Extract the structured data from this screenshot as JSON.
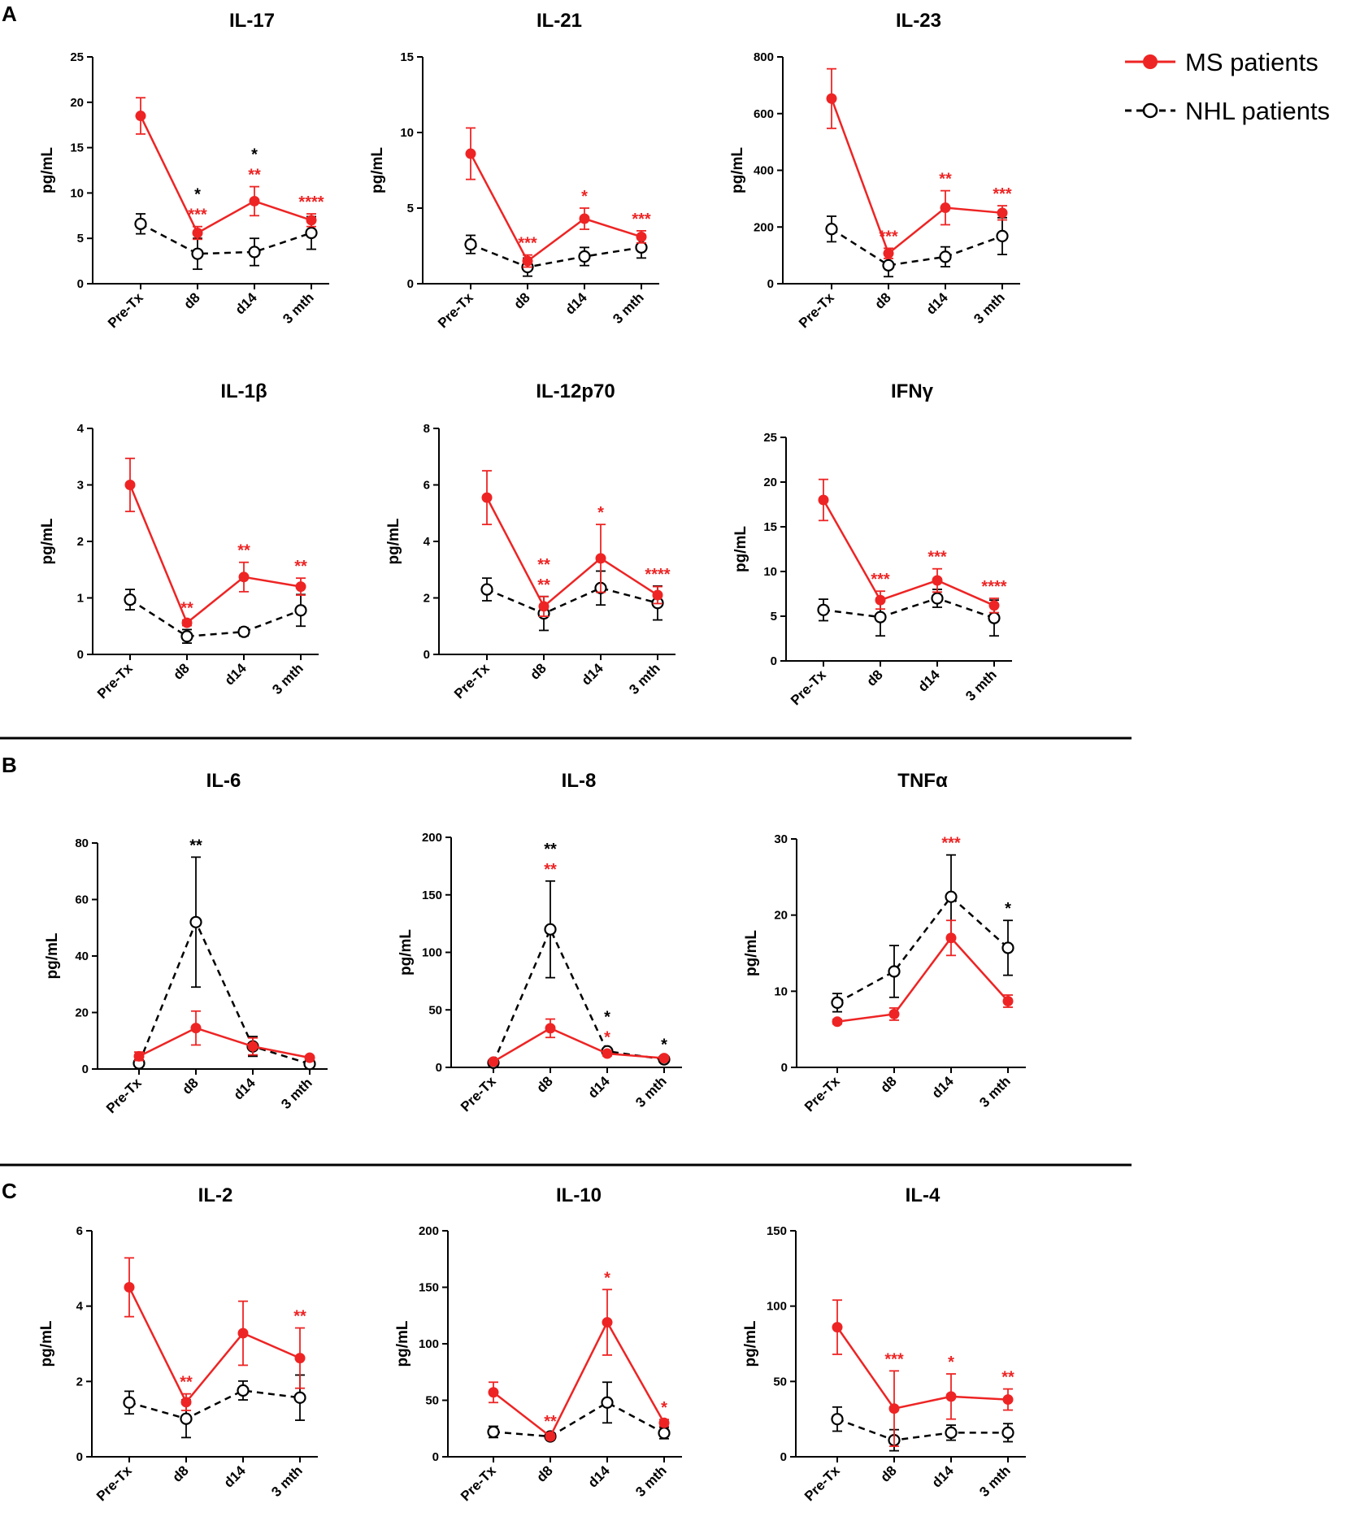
{
  "sections": [
    "A",
    "B",
    "C"
  ],
  "legend": {
    "items": [
      {
        "label": "MS patients",
        "color": "#ee2424",
        "marker": "filled-circle",
        "line": "solid"
      },
      {
        "label": "NHL patients",
        "color": "#000000",
        "marker": "open-circle",
        "line": "dashed"
      }
    ]
  },
  "chart_data": [
    {
      "type": "line",
      "title": "IL-17",
      "ylabel": "pg/mL",
      "categories": [
        "Pre-Tx",
        "d8",
        "d14",
        "3 mth"
      ],
      "ylim": [
        0,
        25
      ],
      "yticks": [
        0,
        5,
        10,
        15,
        20,
        25
      ],
      "series": [
        {
          "name": "MS patients",
          "values": [
            18.5,
            5.6,
            9.1,
            7.0
          ],
          "errors": [
            2.0,
            0.7,
            1.6,
            0.7
          ]
        },
        {
          "name": "NHL patients",
          "values": [
            6.6,
            3.3,
            3.5,
            5.6
          ],
          "errors": [
            1.1,
            1.7,
            1.5,
            1.8
          ]
        }
      ],
      "annotations": [
        {
          "category": "d8",
          "text": "*",
          "color": "#000000"
        },
        {
          "category": "d8",
          "text": "***",
          "color": "#ee2424"
        },
        {
          "category": "d14",
          "text": "*",
          "color": "#000000"
        },
        {
          "category": "d14",
          "text": "**",
          "color": "#ee2424"
        },
        {
          "category": "3 mth",
          "text": "****",
          "color": "#ee2424"
        }
      ]
    },
    {
      "type": "line",
      "title": "IL-21",
      "ylabel": "pg/mL",
      "categories": [
        "Pre-Tx",
        "d8",
        "d14",
        "3 mth"
      ],
      "ylim": [
        0,
        15
      ],
      "yticks": [
        0,
        5,
        10,
        15
      ],
      "series": [
        {
          "name": "MS patients",
          "values": [
            8.6,
            1.5,
            4.3,
            3.1
          ],
          "errors": [
            1.7,
            0.4,
            0.7,
            0.4
          ]
        },
        {
          "name": "NHL patients",
          "values": [
            2.6,
            1.1,
            1.8,
            2.4
          ],
          "errors": [
            0.6,
            0.6,
            0.6,
            0.7
          ]
        }
      ],
      "annotations": [
        {
          "category": "d8",
          "text": "***",
          "color": "#ee2424"
        },
        {
          "category": "d14",
          "text": "*",
          "color": "#ee2424"
        },
        {
          "category": "3 mth",
          "text": "***",
          "color": "#ee2424"
        }
      ]
    },
    {
      "type": "line",
      "title": "IL-23",
      "ylabel": "pg/mL",
      "categories": [
        "Pre-Tx",
        "d8",
        "d14",
        "3 mth"
      ],
      "ylim": [
        0,
        800
      ],
      "yticks": [
        0,
        200,
        400,
        600,
        800
      ],
      "series": [
        {
          "name": "MS patients",
          "values": [
            653,
            107,
            268,
            250
          ],
          "errors": [
            105,
            18,
            60,
            25
          ]
        },
        {
          "name": "NHL patients",
          "values": [
            193,
            65,
            95,
            168
          ],
          "errors": [
            45,
            40,
            35,
            65
          ]
        }
      ],
      "annotations": [
        {
          "category": "d8",
          "text": "***",
          "color": "#ee2424"
        },
        {
          "category": "d14",
          "text": "**",
          "color": "#ee2424"
        },
        {
          "category": "3 mth",
          "text": "***",
          "color": "#ee2424"
        }
      ]
    },
    {
      "type": "line",
      "title": "IL-1β",
      "ylabel": "pg/mL",
      "categories": [
        "Pre-Tx",
        "d8",
        "d14",
        "3 mth"
      ],
      "ylim": [
        0,
        4
      ],
      "yticks": [
        0,
        1,
        2,
        3,
        4
      ],
      "series": [
        {
          "name": "MS patients",
          "values": [
            3.0,
            0.56,
            1.37,
            1.2
          ],
          "errors": [
            0.47,
            0.05,
            0.26,
            0.15
          ]
        },
        {
          "name": "NHL patients",
          "values": [
            0.97,
            0.32,
            0.4,
            0.78
          ],
          "errors": [
            0.18,
            0.12,
            0.07,
            0.28
          ]
        }
      ],
      "annotations": [
        {
          "category": "d8",
          "text": "**",
          "color": "#ee2424"
        },
        {
          "category": "d14",
          "text": "**",
          "color": "#ee2424"
        },
        {
          "category": "3 mth",
          "text": "**",
          "color": "#ee2424"
        }
      ]
    },
    {
      "type": "line",
      "title": "IL-12p70",
      "ylabel": "pg/mL",
      "categories": [
        "Pre-Tx",
        "d8",
        "d14",
        "3 mth"
      ],
      "ylim": [
        0,
        8
      ],
      "yticks": [
        0,
        2,
        4,
        6,
        8
      ],
      "series": [
        {
          "name": "MS patients",
          "values": [
            5.55,
            1.7,
            3.4,
            2.1
          ],
          "errors": [
            0.95,
            0.35,
            1.2,
            0.3
          ]
        },
        {
          "name": "NHL patients",
          "values": [
            2.3,
            1.45,
            2.35,
            1.82
          ],
          "errors": [
            0.4,
            0.6,
            0.6,
            0.6
          ]
        }
      ],
      "annotations": [
        {
          "category": "d8",
          "text": "**",
          "color": "#ee2424"
        },
        {
          "category": "d8",
          "text": "**",
          "color": "#ee2424"
        },
        {
          "category": "d14",
          "text": "*",
          "color": "#ee2424"
        },
        {
          "category": "3 mth",
          "text": "****",
          "color": "#ee2424"
        }
      ]
    },
    {
      "type": "line",
      "title": "IFNγ",
      "ylabel": "pg/mL",
      "categories": [
        "Pre-Tx",
        "d8",
        "d14",
        "3 mth"
      ],
      "ylim": [
        0,
        25
      ],
      "yticks": [
        0,
        5,
        10,
        15,
        20,
        25
      ],
      "series": [
        {
          "name": "MS patients",
          "values": [
            18.0,
            6.8,
            9.0,
            6.2
          ],
          "errors": [
            2.3,
            1.0,
            1.3,
            0.8
          ]
        },
        {
          "name": "NHL patients",
          "values": [
            5.7,
            4.9,
            7.0,
            4.8
          ],
          "errors": [
            1.2,
            2.1,
            1.0,
            2.0
          ]
        }
      ],
      "annotations": [
        {
          "category": "d8",
          "text": "***",
          "color": "#ee2424"
        },
        {
          "category": "d14",
          "text": "***",
          "color": "#ee2424"
        },
        {
          "category": "3 mth",
          "text": "****",
          "color": "#ee2424"
        }
      ]
    },
    {
      "type": "line",
      "title": "IL-6",
      "ylabel": "pg/mL",
      "categories": [
        "Pre-Tx",
        "d8",
        "d14",
        "3 mth"
      ],
      "ylim": [
        0,
        80
      ],
      "yticks": [
        0,
        20,
        40,
        60,
        80
      ],
      "series": [
        {
          "name": "MS patients",
          "values": [
            4.5,
            14.5,
            8.0,
            4.0
          ],
          "errors": [
            1.5,
            6.0,
            3.0,
            0.6
          ]
        },
        {
          "name": "NHL patients",
          "values": [
            2.0,
            52.0,
            8.0,
            1.8
          ],
          "errors": [
            1.0,
            23.0,
            3.5,
            0.5
          ]
        }
      ],
      "annotations": [
        {
          "category": "d8",
          "text": "**",
          "color": "#000000"
        }
      ]
    },
    {
      "type": "line",
      "title": "IL-8",
      "ylabel": "pg/mL",
      "categories": [
        "Pre-Tx",
        "d8",
        "d14",
        "3 mth"
      ],
      "ylim": [
        0,
        200
      ],
      "yticks": [
        0,
        50,
        100,
        150,
        200
      ],
      "series": [
        {
          "name": "MS patients",
          "values": [
            5,
            34,
            12,
            8
          ],
          "errors": [
            1,
            8,
            2,
            1.5
          ]
        },
        {
          "name": "NHL patients",
          "values": [
            4,
            120,
            14,
            7
          ],
          "errors": [
            1,
            42,
            2,
            1
          ]
        }
      ],
      "annotations": [
        {
          "category": "d8",
          "text": "**",
          "color": "#000000"
        },
        {
          "category": "d8",
          "text": "**",
          "color": "#ee2424"
        },
        {
          "category": "d14",
          "text": "*",
          "color": "#000000"
        },
        {
          "category": "d14",
          "text": "*",
          "color": "#ee2424"
        },
        {
          "category": "3 mth",
          "text": "*",
          "color": "#000000"
        }
      ]
    },
    {
      "type": "line",
      "title": "TNFα",
      "ylabel": "pg/mL",
      "categories": [
        "Pre-Tx",
        "d8",
        "d14",
        "3 mth"
      ],
      "ylim": [
        0,
        30
      ],
      "yticks": [
        0,
        10,
        20,
        30
      ],
      "series": [
        {
          "name": "MS patients",
          "values": [
            6.0,
            7.0,
            17.0,
            8.7
          ],
          "errors": [
            0.3,
            0.8,
            2.3,
            0.8
          ]
        },
        {
          "name": "NHL patients",
          "values": [
            8.5,
            12.6,
            22.4,
            15.7
          ],
          "errors": [
            1.2,
            3.4,
            5.5,
            3.6
          ]
        }
      ],
      "annotations": [
        {
          "category": "d14",
          "text": "***",
          "color": "#ee2424"
        },
        {
          "category": "3 mth",
          "text": "*",
          "color": "#000000"
        }
      ]
    },
    {
      "type": "line",
      "title": "IL-2",
      "ylabel": "pg/mL",
      "categories": [
        "Pre-Tx",
        "d8",
        "d14",
        "3 mth"
      ],
      "ylim": [
        0,
        6
      ],
      "yticks": [
        0,
        2,
        4,
        6
      ],
      "series": [
        {
          "name": "MS patients",
          "values": [
            4.5,
            1.45,
            3.28,
            2.62
          ],
          "errors": [
            0.78,
            0.22,
            0.85,
            0.8
          ]
        },
        {
          "name": "NHL patients",
          "values": [
            1.44,
            1.01,
            1.76,
            1.57
          ],
          "errors": [
            0.3,
            0.5,
            0.25,
            0.6
          ]
        }
      ],
      "annotations": [
        {
          "category": "d8",
          "text": "**",
          "color": "#ee2424"
        },
        {
          "category": "3 mth",
          "text": "**",
          "color": "#ee2424"
        }
      ]
    },
    {
      "type": "line",
      "title": "IL-10",
      "ylabel": "pg/mL",
      "categories": [
        "Pre-Tx",
        "d8",
        "d14",
        "3 mth"
      ],
      "ylim": [
        0,
        200
      ],
      "yticks": [
        0,
        50,
        100,
        150,
        200
      ],
      "series": [
        {
          "name": "MS patients",
          "values": [
            57,
            18,
            119,
            30
          ],
          "errors": [
            9,
            2,
            29,
            3
          ]
        },
        {
          "name": "NHL patients",
          "values": [
            22,
            18,
            48,
            21
          ],
          "errors": [
            5,
            3,
            18,
            5
          ]
        }
      ],
      "annotations": [
        {
          "category": "d8",
          "text": "**",
          "color": "#ee2424"
        },
        {
          "category": "d14",
          "text": "*",
          "color": "#ee2424"
        },
        {
          "category": "3 mth",
          "text": "*",
          "color": "#ee2424"
        }
      ]
    },
    {
      "type": "line",
      "title": "IL-4",
      "ylabel": "pg/mL",
      "categories": [
        "Pre-Tx",
        "d8",
        "d14",
        "3 mth"
      ],
      "ylim": [
        0,
        150
      ],
      "yticks": [
        0,
        50,
        100,
        150
      ],
      "series": [
        {
          "name": "MS patients",
          "values": [
            86,
            32,
            40,
            38
          ],
          "errors": [
            18,
            25,
            15,
            7
          ]
        },
        {
          "name": "NHL patients",
          "values": [
            25,
            11,
            16,
            16
          ],
          "errors": [
            8,
            7,
            5,
            6
          ]
        }
      ],
      "annotations": [
        {
          "category": "d8",
          "text": "***",
          "color": "#ee2424"
        },
        {
          "category": "d14",
          "text": "*",
          "color": "#ee2424"
        },
        {
          "category": "3 mth",
          "text": "**",
          "color": "#ee2424"
        }
      ]
    }
  ]
}
